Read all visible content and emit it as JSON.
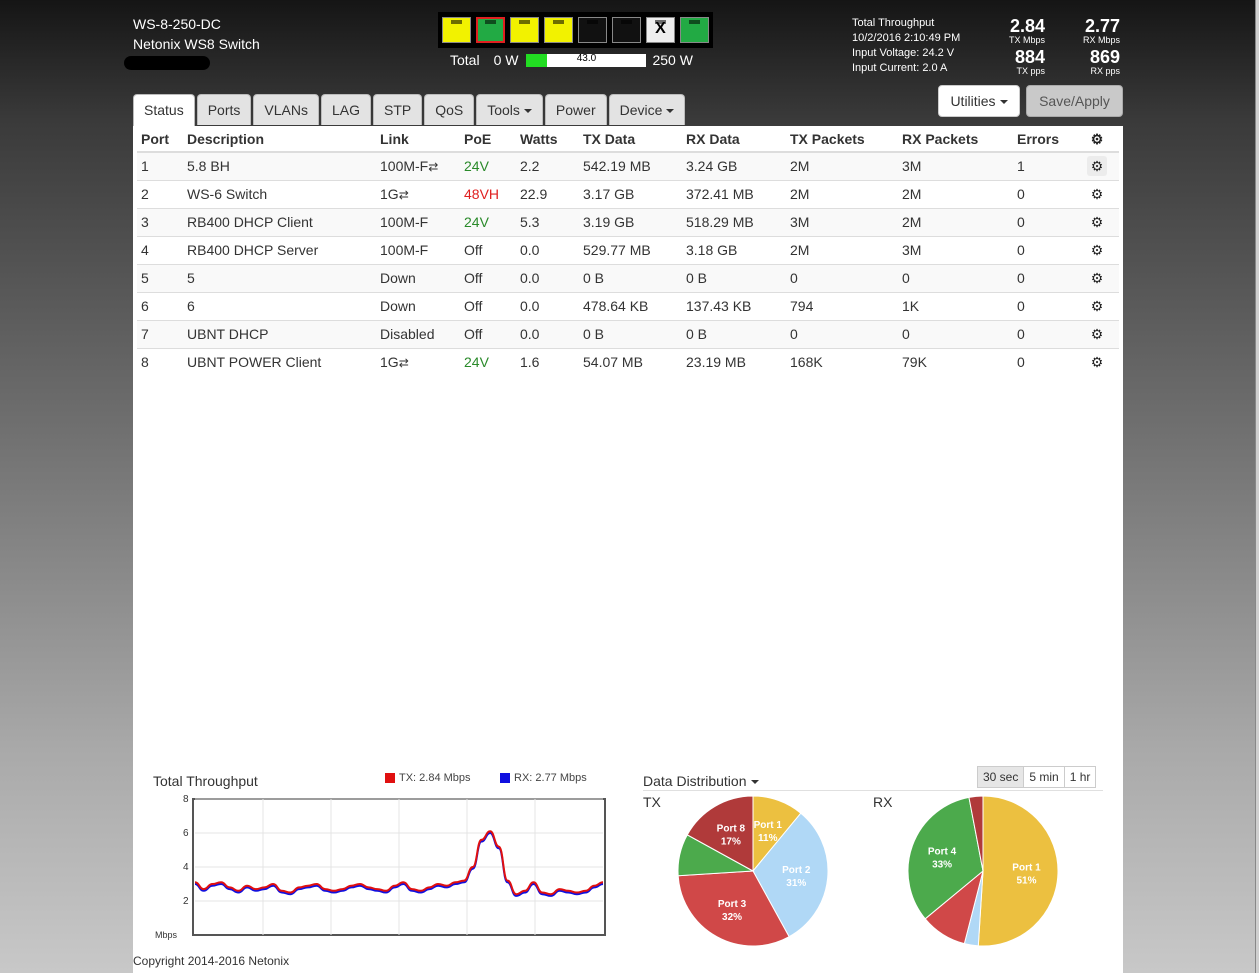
{
  "device": {
    "model": "WS-8-250-DC",
    "name": "Netonix WS8 Switch"
  },
  "port_leds": [
    {
      "color": "#f2f200",
      "selected": false,
      "x_mark": false
    },
    {
      "color": "#22aa44",
      "selected": true,
      "x_mark": false
    },
    {
      "color": "#f2f200",
      "selected": false,
      "x_mark": false
    },
    {
      "color": "#f2f200",
      "selected": false,
      "x_mark": false
    },
    {
      "color": "#111111",
      "selected": false,
      "x_mark": false
    },
    {
      "color": "#111111",
      "selected": false,
      "x_mark": false
    },
    {
      "color": "#eeeeee",
      "selected": false,
      "x_mark": true
    },
    {
      "color": "#22aa44",
      "selected": false,
      "x_mark": false
    }
  ],
  "power": {
    "label": "Total",
    "min": "0 W",
    "value": "43.0",
    "max": "250 W",
    "fraction": 0.17
  },
  "stats": {
    "title": "Total Throughput",
    "datetime": "10/2/2016 2:10:49 PM",
    "voltage": "Input Voltage: 24.2 V",
    "current": "Input Current: 2.0 A",
    "tx_mbps": "2.84",
    "tx_mbps_label": "TX Mbps",
    "rx_mbps": "2.77",
    "rx_mbps_label": "RX Mbps",
    "tx_pps": "884",
    "tx_pps_label": "TX pps",
    "rx_pps": "869",
    "rx_pps_label": "RX pps"
  },
  "buttons": {
    "utilities": "Utilities",
    "save": "Save/Apply"
  },
  "tabs": [
    "Status",
    "Ports",
    "VLANs",
    "LAG",
    "STP",
    "QoS",
    "Tools",
    "Power",
    "Device"
  ],
  "table": {
    "headers": [
      "Port",
      "Description",
      "Link",
      "PoE",
      "Watts",
      "TX Data",
      "RX Data",
      "TX Packets",
      "RX Packets",
      "Errors"
    ],
    "rows": [
      {
        "port": "1",
        "desc": "5.8 BH",
        "link": "100M-F",
        "arrows": true,
        "poe": "24V",
        "poe_color": "green",
        "watts": "2.2",
        "tx": "542.19 MB",
        "rx": "3.24 GB",
        "txp": "2M",
        "rxp": "3M",
        "err": "1"
      },
      {
        "port": "2",
        "desc": "WS-6 Switch",
        "link": "1G",
        "arrows": true,
        "poe": "48VH",
        "poe_color": "red",
        "watts": "22.9",
        "tx": "3.17 GB",
        "rx": "372.41 MB",
        "txp": "2M",
        "rxp": "2M",
        "err": "0"
      },
      {
        "port": "3",
        "desc": "RB400 DHCP Client",
        "link": "100M-F",
        "arrows": false,
        "poe": "24V",
        "poe_color": "green",
        "watts": "5.3",
        "tx": "3.19 GB",
        "rx": "518.29 MB",
        "txp": "3M",
        "rxp": "2M",
        "err": "0"
      },
      {
        "port": "4",
        "desc": "RB400 DHCP Server",
        "link": "100M-F",
        "arrows": false,
        "poe": "Off",
        "poe_color": "plain",
        "watts": "0.0",
        "tx": "529.77 MB",
        "rx": "3.18 GB",
        "txp": "2M",
        "rxp": "3M",
        "err": "0"
      },
      {
        "port": "5",
        "desc": "5",
        "link": "Down",
        "arrows": false,
        "poe": "Off",
        "poe_color": "plain",
        "watts": "0.0",
        "tx": "0 B",
        "rx": "0 B",
        "txp": "0",
        "rxp": "0",
        "err": "0"
      },
      {
        "port": "6",
        "desc": "6",
        "link": "Down",
        "arrows": false,
        "poe": "Off",
        "poe_color": "plain",
        "watts": "0.0",
        "tx": "478.64 KB",
        "rx": "137.43 KB",
        "txp": "794",
        "rxp": "1K",
        "err": "0"
      },
      {
        "port": "7",
        "desc": "UBNT DHCP",
        "link": "Disabled",
        "arrows": false,
        "poe": "Off",
        "poe_color": "plain",
        "watts": "0.0",
        "tx": "0 B",
        "rx": "0 B",
        "txp": "0",
        "rxp": "0",
        "err": "0"
      },
      {
        "port": "8",
        "desc": "UBNT POWER Client",
        "link": "1G",
        "arrows": true,
        "poe": "24V",
        "poe_color": "green",
        "watts": "1.6",
        "tx": "54.07 MB",
        "rx": "23.19 MB",
        "txp": "168K",
        "rxp": "79K",
        "err": "0"
      }
    ]
  },
  "throughput": {
    "title": "Total Throughput",
    "tx_legend": "TX: 2.84 Mbps",
    "rx_legend": "RX: 2.77 Mbps",
    "ylabel": "Mbps",
    "yticks": [
      "8",
      "6",
      "4",
      "2"
    ],
    "tx_color": "#e01010",
    "rx_color": "#1010e0"
  },
  "distribution": {
    "title": "Data Distribution",
    "ranges": [
      "30 sec",
      "5 min",
      "1 hr"
    ],
    "active_range": "30 sec",
    "tx_label": "TX",
    "rx_label": "RX"
  },
  "chart_data": [
    {
      "type": "line",
      "ylim": [
        0,
        8
      ],
      "ylabel": "Mbps",
      "series": [
        {
          "name": "TX: 2.84 Mbps",
          "values": [
            3.1,
            2.7,
            3.0,
            3.1,
            2.8,
            2.6,
            2.9,
            2.7,
            2.8,
            3.0,
            2.6,
            2.5,
            2.8,
            2.9,
            3.0,
            2.7,
            2.6,
            2.7,
            2.9,
            3.0,
            2.8,
            2.7,
            2.6,
            2.9,
            3.1,
            2.7,
            2.6,
            2.8,
            3.0,
            2.9,
            3.1,
            3.2,
            4.0,
            5.6,
            6.1,
            5.2,
            3.2,
            2.4,
            2.6,
            3.1,
            2.5,
            2.4,
            2.7,
            2.6,
            2.5,
            2.6,
            2.9,
            3.1
          ]
        },
        {
          "name": "RX: 2.77 Mbps",
          "values": [
            3.0,
            2.6,
            2.9,
            3.0,
            2.7,
            2.5,
            2.8,
            2.6,
            2.7,
            2.9,
            2.5,
            2.4,
            2.7,
            2.8,
            2.9,
            2.6,
            2.5,
            2.6,
            2.8,
            2.9,
            2.7,
            2.6,
            2.5,
            2.8,
            3.0,
            2.6,
            2.5,
            2.7,
            2.9,
            2.8,
            3.0,
            3.1,
            3.9,
            5.5,
            6.0,
            5.1,
            3.1,
            2.3,
            2.5,
            3.0,
            2.4,
            2.3,
            2.6,
            2.5,
            2.4,
            2.5,
            2.8,
            3.0
          ]
        }
      ]
    },
    {
      "type": "pie",
      "title": "TX",
      "slices": [
        {
          "label": "Port 1",
          "value": 11,
          "color": "#ecc040"
        },
        {
          "label": "Port 2",
          "value": 31,
          "color": "#b0d8f6"
        },
        {
          "label": "Port 3",
          "value": 32,
          "color": "#d04848"
        },
        {
          "label": "",
          "value": 9,
          "color": "#4caa4c"
        },
        {
          "label": "Port 8",
          "value": 17,
          "color": "#b03a3a"
        }
      ]
    },
    {
      "type": "pie",
      "title": "RX",
      "slices": [
        {
          "label": "Port 1",
          "value": 51,
          "color": "#ecc040"
        },
        {
          "label": "",
          "value": 3,
          "color": "#b0d8f6"
        },
        {
          "label": "",
          "value": 10,
          "color": "#d04848"
        },
        {
          "label": "Port 4",
          "value": 33,
          "color": "#4caa4c"
        },
        {
          "label": "",
          "value": 3,
          "color": "#b03a3a"
        }
      ]
    }
  ],
  "footer": {
    "copyright": "Copyright 2014-2016 Netonix"
  }
}
